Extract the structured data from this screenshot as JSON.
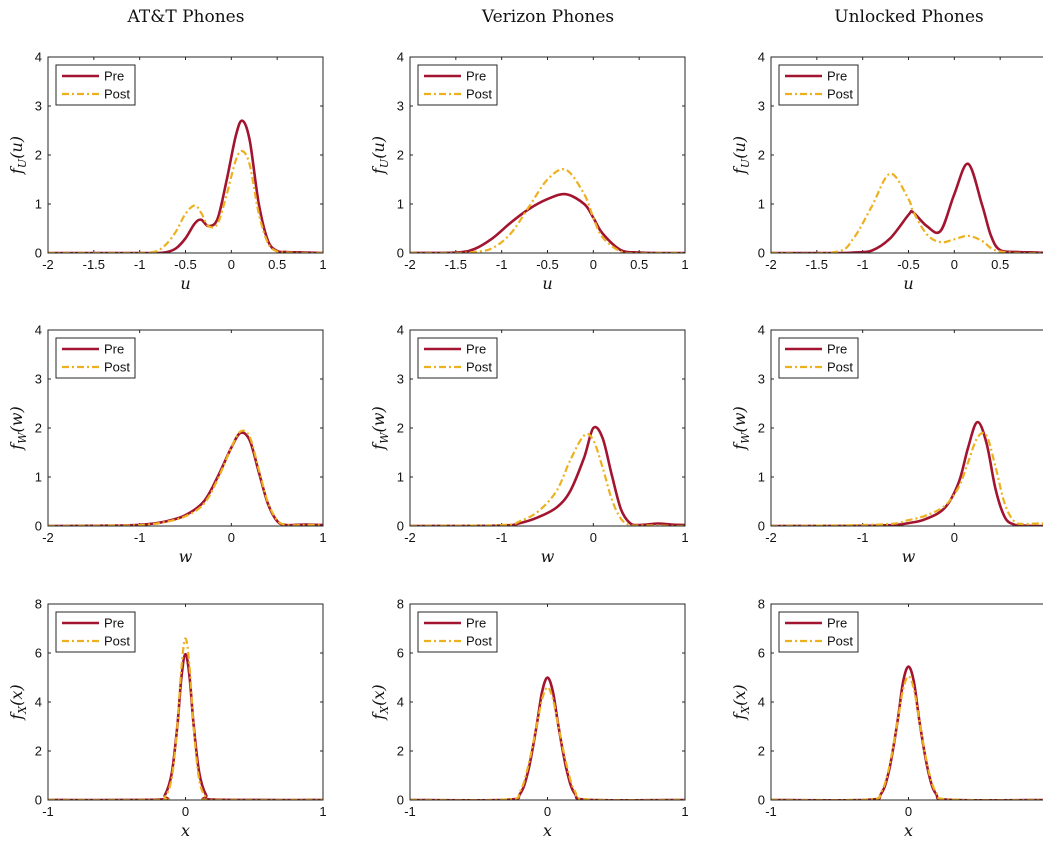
{
  "figure": {
    "column_titles": [
      "AT&T Phones",
      "Verizon Phones",
      "Unlocked Phones"
    ],
    "legend": [
      "Pre",
      "Post"
    ],
    "colors": {
      "pre": "#a2142f",
      "post": "#edb120"
    }
  },
  "chart_data": [
    {
      "type": "line",
      "title": "AT&T Phones",
      "xlabel": "u",
      "ylabel_main": "f",
      "ylabel_sub": "U",
      "ylabel_arg": "(u)",
      "xlim": [
        -2,
        1
      ],
      "ylim": [
        0,
        4
      ],
      "xticks": [
        -2,
        -1.5,
        -1,
        -0.5,
        0,
        0.5,
        1
      ],
      "yticks": [
        0,
        1,
        2,
        3,
        4
      ],
      "x": [
        -2,
        -1,
        -0.9,
        -0.8,
        -0.7,
        -0.6,
        -0.5,
        -0.4,
        -0.33,
        -0.25,
        -0.15,
        -0.05,
        0.05,
        0.12,
        0.2,
        0.3,
        0.4,
        0.5,
        0.6,
        0.8,
        1
      ],
      "series": [
        {
          "name": "Pre",
          "values": [
            0,
            0,
            0,
            0,
            0.02,
            0.1,
            0.3,
            0.6,
            0.68,
            0.55,
            0.7,
            1.5,
            2.4,
            2.7,
            2.3,
            1.0,
            0.25,
            0.04,
            0.02,
            0.01,
            0
          ]
        },
        {
          "name": "Post",
          "values": [
            0,
            0,
            0.01,
            0.05,
            0.2,
            0.45,
            0.8,
            0.97,
            0.82,
            0.55,
            0.6,
            1.2,
            1.9,
            2.08,
            1.8,
            0.8,
            0.2,
            0.03,
            0.01,
            0,
            0
          ]
        }
      ]
    },
    {
      "type": "line",
      "title": "Verizon Phones",
      "xlabel": "u",
      "ylabel_main": "f",
      "ylabel_sub": "U",
      "ylabel_arg": "(u)",
      "xlim": [
        -2,
        1
      ],
      "ylim": [
        0,
        4
      ],
      "xticks": [
        -2,
        -1.5,
        -1,
        -0.5,
        0,
        0.5,
        1
      ],
      "yticks": [
        0,
        1,
        2,
        3,
        4
      ],
      "x": [
        -2,
        -1.5,
        -1.3,
        -1.1,
        -0.9,
        -0.7,
        -0.5,
        -0.3,
        -0.1,
        0,
        0.1,
        0.3,
        0.5,
        0.7,
        1
      ],
      "series": [
        {
          "name": "Pre",
          "values": [
            0,
            0.01,
            0.08,
            0.3,
            0.62,
            0.9,
            1.1,
            1.2,
            1.0,
            0.72,
            0.4,
            0.06,
            0.01,
            0,
            0
          ]
        },
        {
          "name": "Post",
          "values": [
            0,
            0,
            0.02,
            0.1,
            0.4,
            0.95,
            1.5,
            1.7,
            1.2,
            0.72,
            0.32,
            0.03,
            0,
            0,
            0
          ]
        }
      ]
    },
    {
      "type": "line",
      "title": "Unlocked Phones",
      "xlabel": "u",
      "ylabel_main": "f",
      "ylabel_sub": "U",
      "ylabel_arg": "(u)",
      "xlim": [
        -2,
        1
      ],
      "ylim": [
        0,
        4
      ],
      "xticks": [
        -2,
        -1.5,
        -1,
        -0.5,
        0,
        0.5
      ],
      "yticks": [
        0,
        1,
        2,
        3,
        4
      ],
      "x": [
        -2,
        -1.3,
        -1.1,
        -0.9,
        -0.7,
        -0.5,
        -0.45,
        -0.3,
        -0.15,
        0,
        0.15,
        0.3,
        0.4,
        0.5,
        0.7,
        0.9,
        1
      ],
      "series": [
        {
          "name": "Pre",
          "values": [
            0,
            0,
            0.01,
            0.05,
            0.3,
            0.78,
            0.83,
            0.55,
            0.45,
            1.2,
            1.82,
            1.0,
            0.35,
            0.06,
            0.02,
            0.01,
            0
          ]
        },
        {
          "name": "Post",
          "values": [
            0,
            0.02,
            0.3,
            0.95,
            1.62,
            1.1,
            0.85,
            0.38,
            0.22,
            0.28,
            0.35,
            0.25,
            0.1,
            0.03,
            0,
            0,
            0
          ]
        }
      ]
    },
    {
      "type": "line",
      "title": "",
      "xlabel": "w",
      "ylabel_main": "f",
      "ylabel_sub": "W",
      "ylabel_arg": "(w)",
      "xlim": [
        -2,
        1
      ],
      "ylim": [
        0,
        4
      ],
      "xticks": [
        -2,
        -1,
        0,
        1
      ],
      "yticks": [
        0,
        1,
        2,
        3,
        4
      ],
      "x": [
        -2,
        -1.2,
        -0.9,
        -0.7,
        -0.5,
        -0.3,
        -0.15,
        0,
        0.1,
        0.2,
        0.3,
        0.4,
        0.5,
        0.6,
        0.8,
        1
      ],
      "series": [
        {
          "name": "Pre",
          "values": [
            0,
            0.01,
            0.04,
            0.1,
            0.22,
            0.5,
            1.0,
            1.6,
            1.9,
            1.75,
            1.1,
            0.45,
            0.1,
            0.02,
            0.03,
            0.02
          ]
        },
        {
          "name": "Post",
          "values": [
            0,
            0.01,
            0.03,
            0.09,
            0.2,
            0.45,
            0.95,
            1.6,
            1.93,
            1.82,
            1.15,
            0.48,
            0.12,
            0.02,
            0.02,
            0.02
          ]
        }
      ]
    },
    {
      "type": "line",
      "title": "",
      "xlabel": "w",
      "ylabel_main": "f",
      "ylabel_sub": "W",
      "ylabel_arg": "(w)",
      "xlim": [
        -2,
        1
      ],
      "ylim": [
        0,
        4
      ],
      "xticks": [
        -2,
        -1,
        0,
        1
      ],
      "yticks": [
        0,
        1,
        2,
        3,
        4
      ],
      "x": [
        -2,
        -1,
        -0.8,
        -0.6,
        -0.4,
        -0.25,
        -0.1,
        0,
        0.1,
        0.2,
        0.3,
        0.4,
        0.5,
        0.7,
        0.85,
        1
      ],
      "series": [
        {
          "name": "Pre",
          "values": [
            0,
            0.01,
            0.06,
            0.18,
            0.38,
            0.72,
            1.4,
            2.0,
            1.8,
            1.05,
            0.35,
            0.06,
            0.02,
            0.05,
            0.03,
            0.02
          ]
        },
        {
          "name": "Post",
          "values": [
            0,
            0.02,
            0.1,
            0.3,
            0.72,
            1.35,
            1.85,
            1.75,
            1.2,
            0.55,
            0.15,
            0.02,
            0.01,
            0.01,
            0,
            0
          ]
        }
      ]
    },
    {
      "type": "line",
      "title": "",
      "xlabel": "w",
      "ylabel_main": "f",
      "ylabel_sub": "W",
      "ylabel_arg": "(w)",
      "xlim": [
        -2,
        1
      ],
      "ylim": [
        0,
        4
      ],
      "xticks": [
        -2,
        -1,
        0
      ],
      "yticks": [
        0,
        1,
        2,
        3,
        4
      ],
      "x": [
        -2,
        -0.8,
        -0.5,
        -0.3,
        -0.1,
        0.05,
        0.15,
        0.25,
        0.35,
        0.45,
        0.55,
        0.65,
        0.75,
        0.9,
        1
      ],
      "series": [
        {
          "name": "Pre",
          "values": [
            0,
            0.01,
            0.06,
            0.15,
            0.38,
            0.9,
            1.6,
            2.12,
            1.7,
            0.75,
            0.18,
            0.03,
            0.01,
            0,
            0
          ]
        },
        {
          "name": "Post",
          "values": [
            0,
            0.03,
            0.12,
            0.22,
            0.42,
            0.8,
            1.3,
            1.8,
            1.85,
            1.2,
            0.45,
            0.1,
            0.04,
            0.05,
            0.05
          ]
        }
      ]
    },
    {
      "type": "line",
      "title": "",
      "xlabel": "x",
      "ylabel_main": "f",
      "ylabel_sub": "X",
      "ylabel_arg": "(x)",
      "xlim": [
        -1,
        1
      ],
      "ylim": [
        0,
        8
      ],
      "xticks": [
        -1,
        0,
        1
      ],
      "yticks": [
        0,
        2,
        4,
        6,
        8
      ],
      "x": [
        -1,
        -0.2,
        -0.15,
        -0.1,
        -0.06,
        -0.03,
        0,
        0.03,
        0.06,
        0.1,
        0.15,
        0.2,
        1
      ],
      "series": [
        {
          "name": "Pre",
          "values": [
            0,
            0.02,
            0.2,
            1.1,
            3.0,
            5.0,
            5.95,
            5.0,
            3.0,
            1.1,
            0.2,
            0.02,
            0
          ]
        },
        {
          "name": "Post",
          "values": [
            0,
            0.01,
            0.12,
            0.9,
            3.0,
            5.4,
            6.6,
            5.4,
            2.9,
            0.8,
            0.1,
            0.01,
            0
          ]
        }
      ]
    },
    {
      "type": "line",
      "title": "",
      "xlabel": "x",
      "ylabel_main": "f",
      "ylabel_sub": "X",
      "ylabel_arg": "(x)",
      "xlim": [
        -1,
        1
      ],
      "ylim": [
        0,
        8
      ],
      "xticks": [
        -1,
        0,
        1
      ],
      "yticks": [
        0,
        2,
        4,
        6,
        8
      ],
      "x": [
        -1,
        -0.3,
        -0.2,
        -0.14,
        -0.08,
        -0.04,
        0,
        0.04,
        0.08,
        0.14,
        0.2,
        0.3,
        1
      ],
      "series": [
        {
          "name": "Pre",
          "values": [
            0,
            0.01,
            0.25,
            1.2,
            3.0,
            4.4,
            5.0,
            4.4,
            3.0,
            1.2,
            0.25,
            0.01,
            0
          ]
        },
        {
          "name": "Post",
          "values": [
            0,
            0.02,
            0.35,
            1.4,
            3.0,
            4.1,
            4.6,
            4.1,
            3.0,
            1.4,
            0.35,
            0.02,
            0
          ]
        }
      ]
    },
    {
      "type": "line",
      "title": "",
      "xlabel": "x",
      "ylabel_main": "f",
      "ylabel_sub": "X",
      "ylabel_arg": "(x)",
      "xlim": [
        -1,
        1
      ],
      "ylim": [
        0,
        8
      ],
      "xticks": [
        -1,
        0
      ],
      "yticks": [
        0,
        2,
        4,
        6,
        8
      ],
      "x": [
        -1,
        -0.3,
        -0.2,
        -0.14,
        -0.08,
        -0.04,
        0,
        0.04,
        0.08,
        0.14,
        0.2,
        0.3,
        1
      ],
      "series": [
        {
          "name": "Pre",
          "values": [
            0,
            0.01,
            0.25,
            1.25,
            3.2,
            4.8,
            5.45,
            4.8,
            3.2,
            1.25,
            0.25,
            0.01,
            0
          ]
        },
        {
          "name": "Post",
          "values": [
            0,
            0.02,
            0.32,
            1.35,
            3.2,
            4.5,
            5.05,
            4.5,
            3.2,
            1.35,
            0.32,
            0.02,
            0
          ]
        }
      ]
    }
  ]
}
